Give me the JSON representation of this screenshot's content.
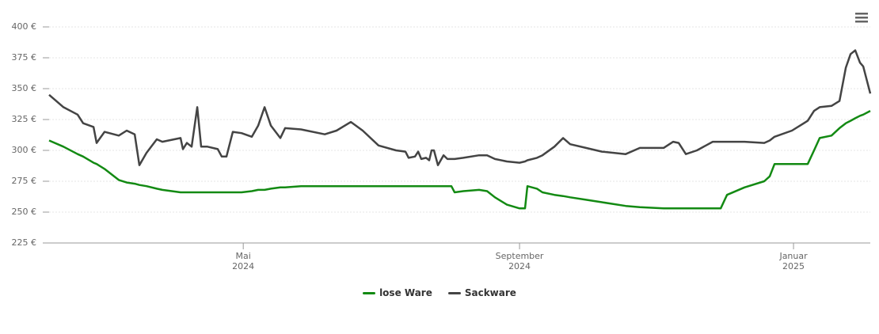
{
  "chart_data": {
    "type": "line",
    "x": [
      2024.0944,
      2024.1118,
      2024.1291,
      2024.1358,
      2024.1484,
      2024.1522,
      2024.1618,
      2024.1792,
      2024.1888,
      2024.1985,
      2024.2042,
      2024.2129,
      2024.2254,
      2024.2322,
      2024.2543,
      2024.2572,
      2024.262,
      2024.2678,
      2024.2746,
      2024.2794,
      2024.2871,
      2024.2996,
      2024.3044,
      2024.3102,
      2024.3179,
      2024.3285,
      2024.341,
      2024.3487,
      2024.3565,
      2024.3642,
      2024.3757,
      2024.3815,
      2024.4008,
      2024.4297,
      2024.4441,
      2024.4615,
      2024.4759,
      2024.4952,
      2024.5164,
      2024.5279,
      2024.5318,
      2024.5395,
      2024.5434,
      2024.5472,
      2024.553,
      2024.5568,
      2024.5597,
      2024.5626,
      2024.5674,
      2024.5742,
      2024.579,
      2024.5838,
      2024.5877,
      2024.5983,
      2024.6175,
      2024.6272,
      2024.6368,
      2024.6513,
      2024.6667,
      2024.6734,
      2024.6763,
      2024.6879,
      2024.6946,
      2024.7091,
      2024.7197,
      2024.7283,
      2024.7476,
      2024.7669,
      2024.7958,
      2024.8131,
      2024.842,
      2024.8536,
      2024.8603,
      2024.869,
      2024.8825,
      2024.9017,
      2024.9114,
      2024.9191,
      2024.9403,
      2024.9644,
      2024.9711,
      2024.9769,
      2024.9981,
      2025.0173,
      2025.025,
      2025.0318,
      2025.0462,
      2025.0559,
      2025.0636,
      2025.0694,
      2025.0751,
      2025.0809,
      2025.0848,
      2025.0934
    ],
    "series": [
      {
        "name": "lose Ware",
        "color": "#138a13",
        "values": [
          308,
          303,
          297,
          295,
          290,
          289,
          285,
          276,
          274,
          273,
          272,
          271,
          269,
          268,
          266,
          266,
          266,
          266,
          266,
          266,
          266,
          266,
          266,
          266,
          266,
          266,
          267,
          268,
          268,
          269,
          270,
          270,
          271,
          271,
          271,
          271,
          271,
          271,
          271,
          271,
          271,
          271,
          271,
          271,
          271,
          271,
          271,
          271,
          271,
          271,
          271,
          271,
          266,
          267,
          268,
          267,
          262,
          256,
          253,
          253,
          271,
          269,
          266,
          264,
          263,
          262,
          260,
          258,
          255,
          254,
          253,
          253,
          253,
          253,
          253,
          253,
          253,
          264,
          270,
          275,
          279,
          289,
          289,
          289,
          300,
          310,
          312,
          318,
          322,
          324,
          326,
          328,
          329,
          332
        ]
      },
      {
        "name": "Sackware",
        "color": "#444444",
        "values": [
          345,
          335,
          329,
          322,
          319,
          306,
          315,
          312,
          316,
          313,
          288,
          298,
          309,
          307,
          310,
          301,
          306,
          303,
          335,
          303,
          303,
          301,
          295,
          295,
          315,
          314,
          311,
          320,
          335,
          320,
          310,
          318,
          317,
          313,
          316,
          323,
          316,
          304,
          300,
          299,
          294,
          295,
          299,
          293,
          294,
          292,
          300,
          300,
          288,
          296,
          293,
          293,
          293,
          294,
          296,
          296,
          293,
          291,
          290,
          291,
          292,
          294,
          296,
          303,
          310,
          305,
          302,
          299,
          297,
          302,
          302,
          307,
          306,
          297,
          300,
          307,
          307,
          307,
          307,
          306,
          308,
          311,
          316,
          324,
          332,
          335,
          336,
          340,
          367,
          378,
          381,
          371,
          368,
          346
        ]
      }
    ],
    "xlim": [
      2024.0944,
      2025.0934
    ],
    "xticks": [
      {
        "value": 2024.3306,
        "label": "Mai\n2024"
      },
      {
        "value": 2024.6667,
        "label": "September\n2024"
      },
      {
        "value": 2025.0,
        "label": "Januar\n2025"
      }
    ],
    "ylim": [
      225,
      400
    ],
    "yticks": [
      {
        "value": 225,
        "label": "225 €"
      },
      {
        "value": 250,
        "label": "250 €"
      },
      {
        "value": 275,
        "label": "275 €"
      },
      {
        "value": 300,
        "label": "300 €"
      },
      {
        "value": 325,
        "label": "325 €"
      },
      {
        "value": 350,
        "label": "350 €"
      },
      {
        "value": 375,
        "label": "375 €"
      },
      {
        "value": 400,
        "label": "400 €"
      }
    ],
    "grid": true
  }
}
